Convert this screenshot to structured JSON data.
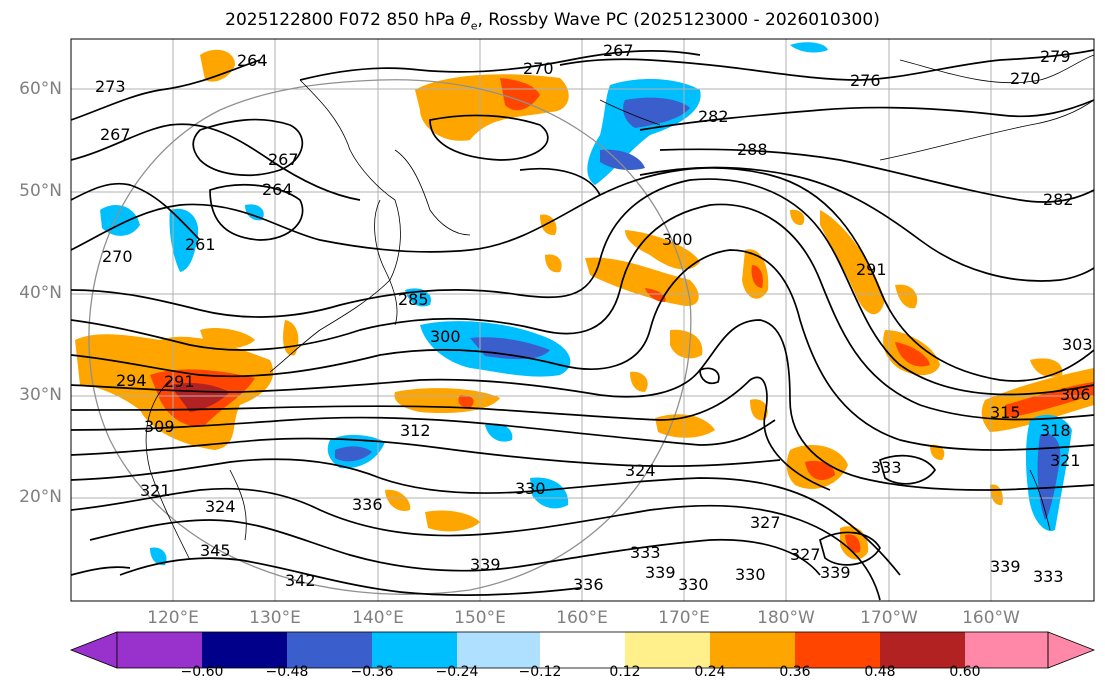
{
  "title": "2025122800 F072 850 hPa θe, Rossby Wave PC (2025123000 - 2026010300)",
  "title_parts": {
    "prefix": "2025122800 F072 850 hPa ",
    "symbol": "θ",
    "subscript": "e",
    "suffix": ", Rossby Wave PC (2025123000 - 2026010300)"
  },
  "map": {
    "lat_labels": [
      "60°N",
      "50°N",
      "40°N",
      "30°N",
      "20°N"
    ],
    "lon_labels": [
      "120°E",
      "130°E",
      "140°E",
      "150°E",
      "160°E",
      "170°E",
      "180°W",
      "170°W",
      "160°W"
    ],
    "contour_labels": [
      "264",
      "267",
      "270",
      "276",
      "279",
      "273",
      "270",
      "267",
      "282",
      "288",
      "282",
      "261",
      "264",
      "267",
      "270",
      "285",
      "300",
      "300",
      "291",
      "294",
      "291",
      "303",
      "306",
      "309",
      "312",
      "315",
      "318",
      "321",
      "321",
      "324",
      "324",
      "327",
      "330",
      "330",
      "333",
      "333",
      "336",
      "336",
      "339",
      "339",
      "339",
      "345",
      "333",
      "342",
      "339",
      "330",
      "327"
    ]
  },
  "colorbar": {
    "ticks": [
      "−0.60",
      "−0.48",
      "−0.36",
      "−0.24",
      "−0.12",
      "0.12",
      "0.24",
      "0.36",
      "0.48",
      "0.60"
    ],
    "colors": [
      "#9932cc",
      "#00008b",
      "#3a5fcd",
      "#00bfff",
      "#b0e0ff",
      "#ffffff",
      "#fff08c",
      "#ffa500",
      "#ff4500",
      "#b22222",
      "#ff88a8"
    ]
  },
  "colors": {
    "positive_light": "#fff08c",
    "positive_mid": "#ffa500",
    "positive_strong": "#ff4500",
    "negative_light": "#b0e0ff",
    "negative_mid": "#00bfff",
    "negative_strong": "#3a5fcd",
    "contour": "#000000",
    "grid": "#b0b0b0",
    "axis_label": "#808080"
  }
}
